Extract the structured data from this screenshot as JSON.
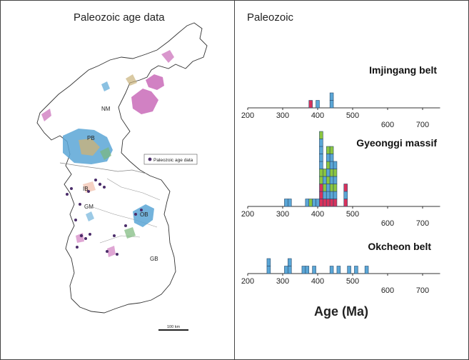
{
  "left_panel": {
    "title": "Paleozoic age data",
    "region_labels": [
      "NM",
      "PB",
      "IB",
      "GM",
      "OB",
      "GB"
    ],
    "legend_label": "Paleozoic age data",
    "scale_label": "100 km"
  },
  "right_panel": {
    "title": "Paleozoic",
    "axis_title": "Age (Ma)",
    "colors": {
      "red": "#d8325c",
      "blue": "#5aa6d6",
      "green": "#8cc63f",
      "border": "#2a4a6a"
    }
  },
  "chart_data": [
    {
      "type": "histogram",
      "title": "Imjingang belt",
      "xlim": [
        200,
        750
      ],
      "ticks": [
        200,
        300,
        400,
        500,
        600,
        700
      ],
      "bin_width": 10,
      "bars": [
        {
          "x": 380,
          "stack": [
            "red"
          ]
        },
        {
          "x": 400,
          "stack": [
            "blue"
          ]
        },
        {
          "x": 440,
          "stack": [
            "blue",
            "blue"
          ]
        }
      ]
    },
    {
      "type": "histogram",
      "title": "Gyeonggi massif",
      "xlim": [
        200,
        750
      ],
      "ticks": [
        200,
        300,
        400,
        500,
        600,
        700
      ],
      "bin_width": 10,
      "bars": [
        {
          "x": 310,
          "stack": [
            "blue"
          ]
        },
        {
          "x": 320,
          "stack": [
            "blue"
          ]
        },
        {
          "x": 370,
          "stack": [
            "blue"
          ]
        },
        {
          "x": 380,
          "stack": [
            "green"
          ]
        },
        {
          "x": 390,
          "stack": [
            "blue"
          ]
        },
        {
          "x": 400,
          "stack": [
            "blue"
          ]
        },
        {
          "x": 410,
          "stack": [
            "red",
            "red",
            "red",
            "green",
            "green",
            "blue",
            "blue",
            "blue",
            "blue",
            "green"
          ]
        },
        {
          "x": 420,
          "stack": [
            "red",
            "blue",
            "green",
            "blue",
            "green"
          ]
        },
        {
          "x": 430,
          "stack": [
            "red",
            "blue",
            "blue",
            "green",
            "blue",
            "green",
            "blue",
            "green"
          ]
        },
        {
          "x": 440,
          "stack": [
            "red",
            "blue",
            "green",
            "blue",
            "green",
            "blue",
            "blue",
            "green"
          ]
        },
        {
          "x": 450,
          "stack": [
            "red",
            "blue",
            "green",
            "blue",
            "green",
            "blue"
          ]
        },
        {
          "x": 480,
          "stack": [
            "red",
            "blue",
            "red"
          ]
        }
      ]
    },
    {
      "type": "histogram",
      "title": "Okcheon belt",
      "xlim": [
        200,
        750
      ],
      "ticks": [
        200,
        300,
        400,
        500,
        600,
        700
      ],
      "bin_width": 10,
      "bars": [
        {
          "x": 260,
          "stack": [
            "blue",
            "blue"
          ]
        },
        {
          "x": 310,
          "stack": [
            "blue"
          ]
        },
        {
          "x": 320,
          "stack": [
            "blue",
            "blue"
          ]
        },
        {
          "x": 360,
          "stack": [
            "blue"
          ]
        },
        {
          "x": 370,
          "stack": [
            "blue"
          ]
        },
        {
          "x": 390,
          "stack": [
            "blue"
          ]
        },
        {
          "x": 440,
          "stack": [
            "blue"
          ]
        },
        {
          "x": 460,
          "stack": [
            "blue"
          ]
        },
        {
          "x": 490,
          "stack": [
            "blue"
          ]
        },
        {
          "x": 510,
          "stack": [
            "blue"
          ]
        },
        {
          "x": 540,
          "stack": [
            "blue"
          ]
        }
      ]
    }
  ]
}
